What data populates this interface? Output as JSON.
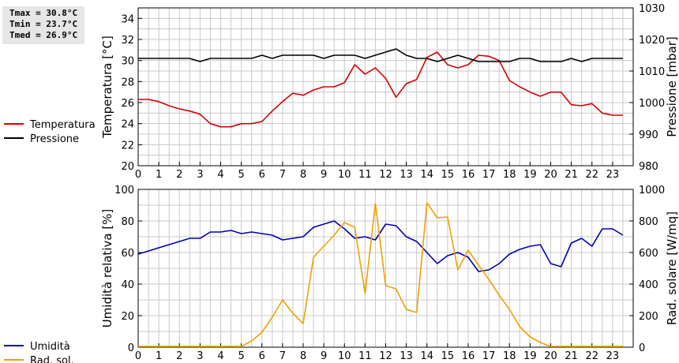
{
  "stats": {
    "tmax": "Tmax = 30.8°C",
    "tmin": "Tmin = 23.7°C",
    "tmed": "Tmed = 26.9°C"
  },
  "colors": {
    "temperatura": "#d40000",
    "pressione": "#000000",
    "umidita": "#0000b4",
    "rad_sol": "#f0a000",
    "grid": "#c8c8c8"
  },
  "chart_data": [
    {
      "type": "line",
      "x_ticks": [
        0,
        1,
        2,
        3,
        4,
        5,
        6,
        7,
        8,
        9,
        10,
        11,
        12,
        13,
        14,
        15,
        16,
        17,
        18,
        19,
        20,
        21,
        22,
        23
      ],
      "xlim": [
        0,
        24
      ],
      "ylabel": "Temperatura [°C]",
      "ylim": [
        20,
        35
      ],
      "y_ticks": [
        20,
        22,
        24,
        26,
        28,
        30,
        32,
        34
      ],
      "y2label": "Pressione [mbar]",
      "y2lim": [
        980,
        1030
      ],
      "y2_ticks": [
        980,
        990,
        1000,
        1010,
        1020,
        1030
      ],
      "grid": true,
      "legend_position": "left",
      "series": [
        {
          "name": "Temperatura",
          "axis": "left",
          "x": [
            0,
            0.5,
            1,
            1.5,
            2,
            2.5,
            3,
            3.5,
            4,
            4.5,
            5,
            5.5,
            6,
            6.5,
            7,
            7.5,
            8,
            8.5,
            9,
            9.5,
            10,
            10.5,
            11,
            11.5,
            12,
            12.5,
            13,
            13.5,
            14,
            14.5,
            15,
            15.5,
            16,
            16.5,
            17,
            17.5,
            18,
            18.5,
            19,
            19.5,
            20,
            20.5,
            21,
            21.5,
            22,
            22.5,
            23,
            23.5
          ],
          "values": [
            26.3,
            26.3,
            26.1,
            25.7,
            25.4,
            25.2,
            24.9,
            24.0,
            23.7,
            23.7,
            24.0,
            24.0,
            24.2,
            25.2,
            26.1,
            26.9,
            26.7,
            27.2,
            27.5,
            27.5,
            27.9,
            29.6,
            28.7,
            29.3,
            28.3,
            26.5,
            27.8,
            28.2,
            30.3,
            30.8,
            29.6,
            29.3,
            29.6,
            30.5,
            30.4,
            30.0,
            28.1,
            27.5,
            27.0,
            26.6,
            27.0,
            27.0,
            25.8,
            25.7,
            25.9,
            25.0,
            24.8,
            24.8
          ]
        },
        {
          "name": "Pressione",
          "axis": "right",
          "x": [
            0,
            0.5,
            1,
            1.5,
            2,
            2.5,
            3,
            3.5,
            4,
            4.5,
            5,
            5.5,
            6,
            6.5,
            7,
            7.5,
            8,
            8.5,
            9,
            9.5,
            10,
            10.5,
            11,
            11.5,
            12,
            12.5,
            13,
            13.5,
            14,
            14.5,
            15,
            15.5,
            16,
            16.5,
            17,
            17.5,
            18,
            18.5,
            19,
            19.5,
            20,
            20.5,
            21,
            21.5,
            22,
            22.5,
            23,
            23.5
          ],
          "values": [
            1014,
            1014,
            1014,
            1014,
            1014,
            1014,
            1013,
            1014,
            1014,
            1014,
            1014,
            1014,
            1015,
            1014,
            1015,
            1015,
            1015,
            1015,
            1014,
            1015,
            1015,
            1015,
            1014,
            1015,
            1016,
            1017,
            1015,
            1014,
            1014,
            1013,
            1014,
            1015,
            1014,
            1013,
            1013,
            1013,
            1013,
            1014,
            1014,
            1013,
            1013,
            1013,
            1014,
            1013,
            1014,
            1014,
            1014,
            1014
          ]
        }
      ]
    },
    {
      "type": "line",
      "x_ticks": [
        0,
        1,
        2,
        3,
        4,
        5,
        6,
        7,
        8,
        9,
        10,
        11,
        12,
        13,
        14,
        15,
        16,
        17,
        18,
        19,
        20,
        21,
        22,
        23
      ],
      "xlim": [
        0,
        24
      ],
      "ylabel": "Umidità relativa [%]",
      "ylim": [
        0,
        100
      ],
      "y_ticks": [
        0,
        20,
        40,
        60,
        80,
        100
      ],
      "y2label": "Rad. solare [W/mq]",
      "y2lim": [
        0,
        1000
      ],
      "y2_ticks": [
        0,
        200,
        400,
        600,
        800,
        1000
      ],
      "grid": true,
      "legend_position": "left",
      "series": [
        {
          "name": "Umidità",
          "axis": "left",
          "x": [
            0,
            0.5,
            1,
            1.5,
            2,
            2.5,
            3,
            3.5,
            4,
            4.5,
            5,
            5.5,
            6,
            6.5,
            7,
            7.5,
            8,
            8.5,
            9,
            9.5,
            10,
            10.5,
            11,
            11.5,
            12,
            12.5,
            13,
            13.5,
            14,
            14.5,
            15,
            15.5,
            16,
            16.5,
            17,
            17.5,
            18,
            18.5,
            19,
            19.5,
            20,
            20.5,
            21,
            21.5,
            22,
            22.5,
            23,
            23.5
          ],
          "values": [
            59,
            61,
            63,
            65,
            67,
            69,
            69,
            73,
            73,
            74,
            72,
            73,
            72,
            71,
            68,
            69,
            70,
            76,
            78,
            80,
            75,
            69,
            70,
            68,
            78,
            77,
            70,
            67,
            60,
            53,
            58,
            60,
            57,
            48,
            49,
            53,
            59,
            62,
            64,
            65,
            53,
            51,
            66,
            69,
            64,
            75,
            75,
            71
          ]
        },
        {
          "name": "Rad. sol.",
          "axis": "right",
          "x": [
            0,
            0.5,
            1,
            1.5,
            2,
            2.5,
            3,
            3.5,
            4,
            4.5,
            5,
            5.5,
            6,
            6.5,
            7,
            7.5,
            8,
            8.5,
            9,
            9.5,
            10,
            10.5,
            11,
            11.5,
            12,
            12.5,
            13,
            13.5,
            14,
            14.5,
            15,
            15.5,
            16,
            16.5,
            17,
            17.5,
            18,
            18.5,
            19,
            19.5,
            20,
            20.5,
            21,
            21.5,
            22,
            22.5,
            23,
            23.5
          ],
          "values": [
            5,
            5,
            5,
            5,
            5,
            5,
            5,
            5,
            5,
            5,
            5,
            40,
            95,
            190,
            300,
            215,
            150,
            570,
            640,
            710,
            790,
            760,
            340,
            910,
            390,
            370,
            240,
            220,
            915,
            820,
            825,
            490,
            615,
            520,
            430,
            330,
            240,
            130,
            65,
            30,
            5,
            5,
            5,
            5,
            5,
            5,
            5,
            5
          ]
        }
      ]
    }
  ]
}
